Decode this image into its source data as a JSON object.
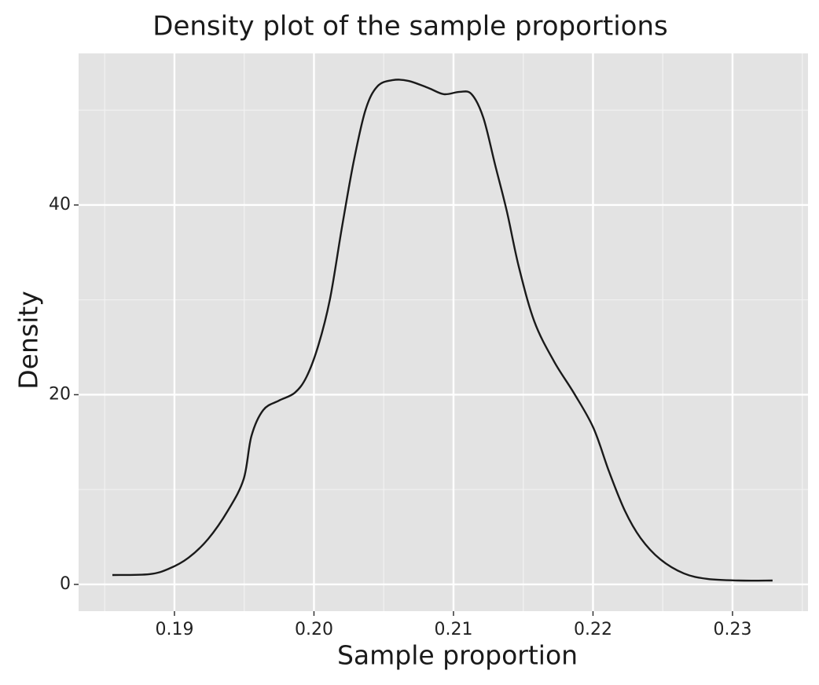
{
  "chart_data": {
    "type": "line",
    "title": "Density plot of the sample proportions",
    "x_label": "Sample proportion",
    "y_label": "Density",
    "x": [
      0.18555,
      0.1882,
      0.18961,
      0.19101,
      0.19242,
      0.19383,
      0.19496,
      0.19552,
      0.19637,
      0.19749,
      0.19862,
      0.19946,
      0.20031,
      0.20115,
      0.202,
      0.20285,
      0.20369,
      0.20454,
      0.20566,
      0.20679,
      0.2082,
      0.20932,
      0.21045,
      0.2113,
      0.21214,
      0.21299,
      0.21383,
      0.21468,
      0.2158,
      0.21721,
      0.21862,
      0.22003,
      0.22115,
      0.22228,
      0.22341,
      0.22482,
      0.22651,
      0.2282,
      0.23045,
      0.23287
    ],
    "series": [
      {
        "color": "#1a1a1a",
        "values": [
          0.99,
          1.08,
          1.66,
          2.82,
          4.8,
          7.78,
          11.1,
          15.65,
          18.39,
          19.38,
          20.2,
          21.86,
          25.18,
          30.1,
          37.6,
          44.6,
          50.0,
          52.5,
          53.17,
          53.08,
          52.34,
          51.68,
          51.93,
          51.68,
          49.2,
          44.2,
          39.3,
          33.5,
          27.7,
          23.5,
          20.2,
          16.5,
          11.9,
          7.78,
          4.89,
          2.65,
          1.16,
          0.58,
          0.41,
          0.41
        ]
      }
    ],
    "xlim": [
      0.18313,
      0.23541
    ],
    "ylim": [
      -2.82,
      55.98
    ],
    "xticks": [
      {
        "value": 0.19,
        "label": "0.19"
      },
      {
        "value": 0.2,
        "label": "0.20"
      },
      {
        "value": 0.21,
        "label": "0.21"
      },
      {
        "value": 0.22,
        "label": "0.22"
      },
      {
        "value": 0.23,
        "label": "0.23"
      }
    ],
    "yticks": [
      0,
      20,
      40
    ],
    "minor_xticks": [
      0.185,
      0.195,
      0.205,
      0.215,
      0.225,
      0.235
    ],
    "minor_yticks": [
      10,
      30,
      50
    ],
    "grid": true,
    "panel_color": "#e3e3e3"
  }
}
